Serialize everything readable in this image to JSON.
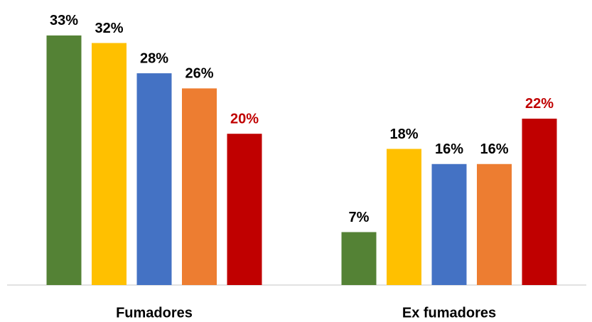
{
  "chart_data": {
    "type": "bar",
    "categories": [
      "Fumadores",
      "Ex fumadores"
    ],
    "series": [
      {
        "color": "#548235",
        "values": [
          33,
          7
        ],
        "value_labels": [
          "33%",
          "7%"
        ],
        "label_color": "#000000"
      },
      {
        "color": "#ffc000",
        "values": [
          32,
          18
        ],
        "value_labels": [
          "32%",
          "18%"
        ],
        "label_color": "#000000"
      },
      {
        "color": "#4472c4",
        "values": [
          28,
          16
        ],
        "value_labels": [
          "28%",
          "16%"
        ],
        "label_color": "#000000"
      },
      {
        "color": "#ed7d31",
        "values": [
          26,
          16
        ],
        "value_labels": [
          "26%",
          "16%"
        ],
        "label_color": "#000000"
      },
      {
        "color": "#c00000",
        "values": [
          20,
          22
        ],
        "value_labels": [
          "20%",
          "22%"
        ],
        "label_color": "#c00000"
      }
    ],
    "ylim": [
      0,
      35
    ],
    "grid": false
  }
}
